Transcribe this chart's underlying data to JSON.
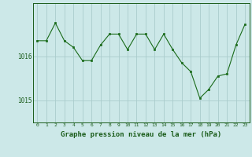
{
  "x": [
    0,
    1,
    2,
    3,
    4,
    5,
    6,
    7,
    8,
    9,
    10,
    11,
    12,
    13,
    14,
    15,
    16,
    17,
    18,
    19,
    20,
    21,
    22,
    23
  ],
  "y": [
    1016.35,
    1016.35,
    1016.75,
    1016.35,
    1016.2,
    1015.9,
    1015.9,
    1016.25,
    1016.5,
    1016.5,
    1016.15,
    1016.5,
    1016.5,
    1016.15,
    1016.5,
    1016.15,
    1015.85,
    1015.65,
    1015.05,
    1015.25,
    1015.55,
    1015.6,
    1016.25,
    1016.72
  ],
  "line_color": "#1a6b1a",
  "marker_color": "#1a6b1a",
  "bg_color": "#cce8e8",
  "grid_color": "#aacccc",
  "axis_color": "#1a5c1a",
  "xlabel": "Graphe pression niveau de la mer (hPa)",
  "xlabel_fontsize": 6.5,
  "yticks": [
    1015,
    1016
  ],
  "ylim": [
    1014.5,
    1017.2
  ],
  "xlim": [
    -0.5,
    23.5
  ]
}
